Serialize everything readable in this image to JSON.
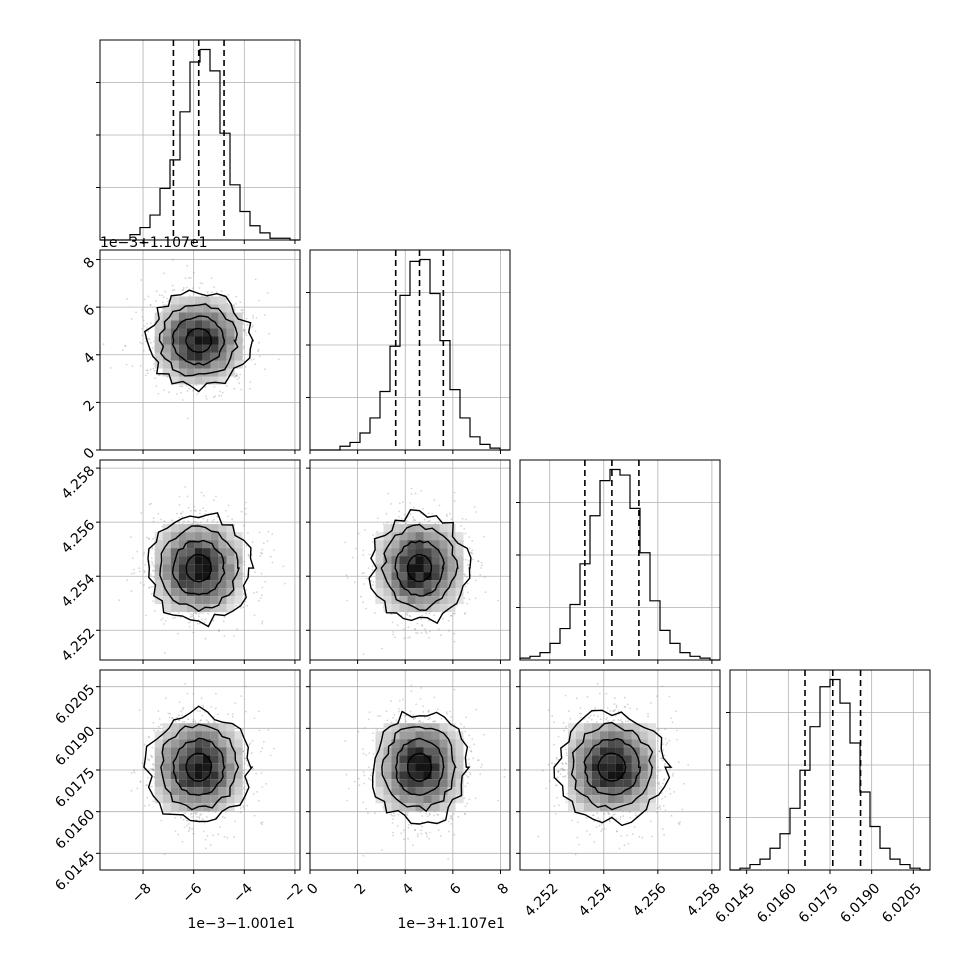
{
  "chart_data": {
    "type": "corner",
    "grid": true,
    "params": [
      {
        "range": [
          -9.7,
          -1.8
        ],
        "center": -5.8,
        "sigma": 1.0,
        "quantiles": [
          -6.8,
          -5.8,
          -4.8
        ],
        "ticks": [
          -8,
          -6,
          -4,
          -2
        ],
        "tick_labels": [
          "−8",
          "−6",
          "−4",
          "−2"
        ],
        "offset_text": "1e−3−1.001e1",
        "hist": [
          0,
          0,
          0,
          3,
          7,
          14,
          29,
          45,
          72,
          100,
          107,
          95,
          60,
          31,
          16,
          8,
          4,
          1,
          1,
          0
        ]
      },
      {
        "range": [
          0.0,
          8.4
        ],
        "center": 4.6,
        "sigma": 1.0,
        "quantiles": [
          3.6,
          4.6,
          5.6
        ],
        "ticks": [
          0,
          2,
          4,
          6,
          8
        ],
        "tick_labels": [
          "0",
          "2",
          "4",
          "6",
          "8"
        ],
        "offset_text": "1e−3+1.107e1",
        "hist": [
          0,
          0,
          0,
          2,
          4,
          9,
          17,
          31,
          55,
          82,
          100,
          101,
          83,
          58,
          32,
          17,
          7,
          3,
          1,
          0
        ]
      },
      {
        "range": [
          4.2509,
          4.2583
        ],
        "center": 4.2543,
        "sigma": 0.001,
        "quantiles": [
          4.2533,
          4.2543,
          4.2553
        ],
        "ticks": [
          4.252,
          4.254,
          4.256,
          4.258
        ],
        "tick_labels": [
          "4.252",
          "4.254",
          "4.256",
          "4.258"
        ],
        "offset_text": "",
        "hist": [
          1,
          2,
          4,
          9,
          17,
          30,
          52,
          78,
          97,
          103,
          100,
          82,
          58,
          32,
          16,
          9,
          4,
          2,
          1,
          0
        ]
      },
      {
        "range": [
          6.0139,
          6.0211
        ],
        "center": 6.0176,
        "sigma": 0.001,
        "quantiles": [
          6.0166,
          6.0176,
          6.0186
        ],
        "ticks": [
          6.0145,
          6.016,
          6.0175,
          6.019,
          6.0205
        ],
        "tick_labels": [
          "6.0145",
          "6.0160",
          "6.0175",
          "6.0190",
          "6.0205"
        ],
        "offset_text": "",
        "hist": [
          0,
          1,
          3,
          6,
          12,
          20,
          34,
          55,
          79,
          101,
          105,
          92,
          70,
          43,
          24,
          12,
          6,
          3,
          1,
          0
        ]
      }
    ]
  }
}
